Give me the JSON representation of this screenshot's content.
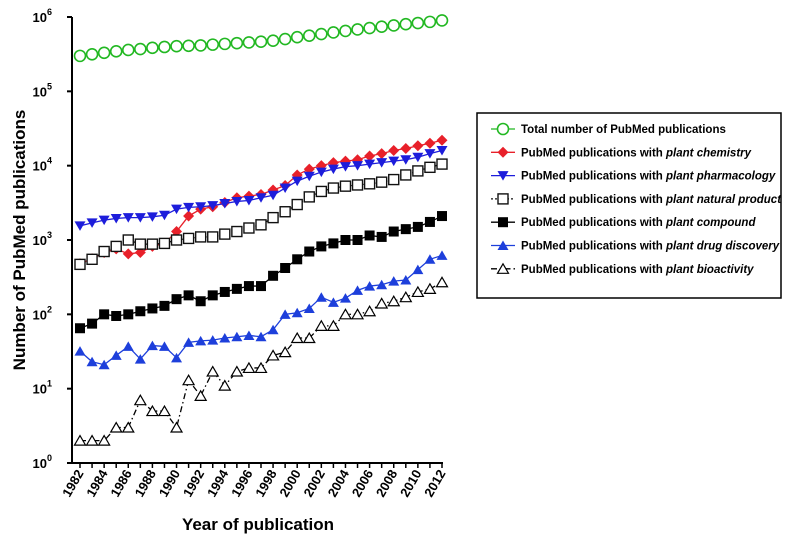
{
  "chart_data": {
    "type": "line",
    "yscale": "log",
    "ylim": [
      1,
      1000000
    ],
    "xlabel": "Year of publication",
    "ylabel": "Number of PubMed publications",
    "x": [
      1982,
      1983,
      1984,
      1985,
      1986,
      1987,
      1988,
      1989,
      1990,
      1991,
      1992,
      1993,
      1994,
      1995,
      1996,
      1997,
      1998,
      1999,
      2000,
      2001,
      2002,
      2003,
      2004,
      2005,
      2006,
      2007,
      2008,
      2009,
      2010,
      2011,
      2012
    ],
    "x_tick_labels": [
      "1982",
      "1984",
      "1986",
      "1988",
      "1990",
      "1992",
      "1994",
      "1996",
      "1998",
      "2000",
      "2002",
      "2004",
      "2006",
      "2008",
      "2010",
      "2012"
    ],
    "y_ticks": [
      {
        "base": "10",
        "exp": "0"
      },
      {
        "base": "10",
        "exp": "1"
      },
      {
        "base": "10",
        "exp": "2"
      },
      {
        "base": "10",
        "exp": "3"
      },
      {
        "base": "10",
        "exp": "4"
      },
      {
        "base": "10",
        "exp": "5"
      },
      {
        "base": "10",
        "exp": "6"
      }
    ],
    "legend_position": "right",
    "series": [
      {
        "name": "Total number of PubMed publications",
        "name_plain": "Total number of PubMed publications",
        "name_italic": "",
        "color": "#22b822",
        "marker": "circle-open",
        "line": "solid",
        "values": [
          300000,
          315000,
          330000,
          345000,
          360000,
          370000,
          385000,
          395000,
          405000,
          410000,
          415000,
          425000,
          435000,
          445000,
          455000,
          465000,
          480000,
          505000,
          535000,
          560000,
          590000,
          620000,
          650000,
          680000,
          710000,
          740000,
          770000,
          800000,
          830000,
          860000,
          900000
        ]
      },
      {
        "name": "PubMed publications with plant chemistry",
        "name_plain": "PubMed publications with ",
        "name_italic": "plant chemistry",
        "color": "#e8202a",
        "marker": "diamond",
        "line": "solid",
        "values": [
          480,
          560,
          680,
          760,
          650,
          680,
          820,
          900,
          1300,
          2100,
          2600,
          2800,
          3200,
          3700,
          3900,
          4100,
          4700,
          5400,
          7500,
          9000,
          10000,
          11000,
          11500,
          12000,
          13500,
          14500,
          16000,
          17000,
          18500,
          20000,
          22000
        ]
      },
      {
        "name": "PubMed publications with plant pharmacology",
        "name_plain": "PubMed publications with ",
        "name_italic": "plant pharmacology",
        "color": "#1d1ddb",
        "marker": "triangle-down",
        "line": "solid",
        "values": [
          1550,
          1700,
          1850,
          1950,
          2000,
          2000,
          2050,
          2150,
          2600,
          2750,
          2800,
          2900,
          3100,
          3300,
          3400,
          3700,
          4000,
          5000,
          6200,
          7200,
          8200,
          9000,
          9700,
          10000,
          10500,
          11000,
          11500,
          12000,
          13000,
          14500,
          16000
        ]
      },
      {
        "name": "PubMed publications with plant natural product",
        "name_plain": "PubMed publications with ",
        "name_italic": "plant natural product",
        "color": "#111111",
        "marker": "square-open",
        "line": "dotted",
        "values": [
          470,
          550,
          700,
          820,
          1000,
          880,
          880,
          900,
          1000,
          1050,
          1100,
          1100,
          1200,
          1300,
          1450,
          1600,
          2000,
          2400,
          3000,
          3800,
          4500,
          5000,
          5300,
          5500,
          5700,
          6000,
          6500,
          7500,
          8500,
          9500,
          10500
        ]
      },
      {
        "name": "PubMed publications with plant compound",
        "name_plain": "PubMed publications with ",
        "name_italic": "plant compound",
        "color": "#000000",
        "marker": "square",
        "line": "solid",
        "values": [
          65,
          75,
          100,
          95,
          100,
          110,
          120,
          130,
          160,
          180,
          150,
          180,
          200,
          220,
          240,
          240,
          330,
          420,
          550,
          700,
          820,
          900,
          1000,
          1000,
          1150,
          1100,
          1300,
          1400,
          1500,
          1750,
          2100
        ]
      },
      {
        "name": "PubMed publications with plant drug discovery",
        "name_plain": "PubMed publications with ",
        "name_italic": "plant drug discovery",
        "color": "#1d3fdb",
        "marker": "triangle-up",
        "line": "solid",
        "values": [
          32,
          23,
          21,
          28,
          37,
          25,
          38,
          37,
          26,
          42,
          44,
          45,
          48,
          50,
          52,
          50,
          62,
          100,
          105,
          120,
          170,
          145,
          165,
          210,
          240,
          250,
          280,
          290,
          400,
          550,
          620
        ]
      },
      {
        "name": "PubMed publications with plant bioactivity",
        "name_plain": "PubMed publications with ",
        "name_italic": "plant bioactivity",
        "color": "#000000",
        "marker": "triangle-up-open",
        "line": "dashdot",
        "values": [
          2,
          2,
          2,
          3,
          3,
          7,
          5,
          5,
          3,
          13,
          8,
          17,
          11,
          17,
          19,
          19,
          28,
          31,
          48,
          48,
          70,
          70,
          100,
          100,
          110,
          140,
          150,
          170,
          200,
          220,
          270
        ]
      }
    ]
  }
}
